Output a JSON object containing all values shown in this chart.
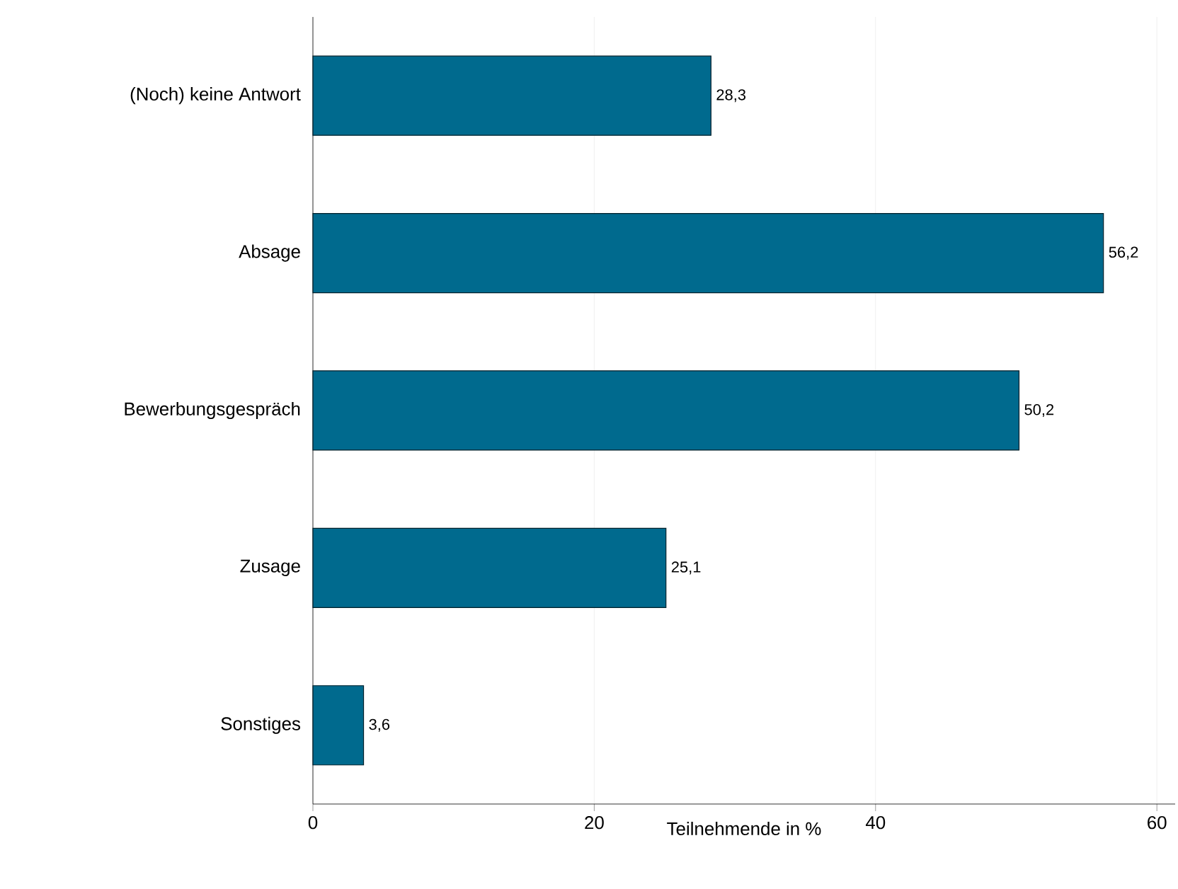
{
  "chart_data": {
    "type": "bar",
    "orientation": "horizontal",
    "xlabel": "Teilnehmende in %",
    "categories": [
      "(Noch) keine Antwort",
      "Absage",
      "Bewerbungsgespräch",
      "Zusage",
      "Sonstiges"
    ],
    "values": [
      28.3,
      56.2,
      50.2,
      25.1,
      3.6
    ],
    "value_labels": [
      "28,3",
      "56,2",
      "50,2",
      "25,1",
      "3,6"
    ],
    "color": "#006a8e",
    "xlim": [
      0,
      61.3
    ],
    "xticks": [
      0,
      20,
      40,
      60
    ],
    "grid": "x"
  }
}
